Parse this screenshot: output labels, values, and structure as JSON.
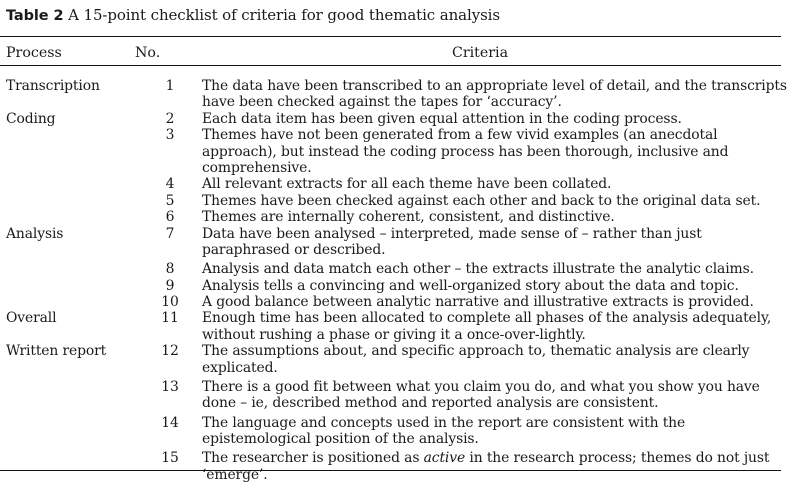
{
  "caption": {
    "label": "Table 2",
    "title": "A 15-point checklist of criteria for good thematic analysis"
  },
  "columns": {
    "process": "Process",
    "number": "No.",
    "criteria": "Criteria"
  },
  "rows": [
    {
      "process": "Transcription",
      "no": "1",
      "criteria": "The data have been transcribed to an appropriate level of detail, and the transcripts have been checked against the tapes for ‘accuracy’."
    },
    {
      "process": "Coding",
      "no": "2",
      "criteria": "Each data item has been given equal attention in the coding process."
    },
    {
      "process": "",
      "no": "3",
      "criteria": "Themes have not been generated from a few vivid examples (an anecdotal approach), but instead the coding process has been thorough, inclusive and comprehensive."
    },
    {
      "process": "",
      "no": "4",
      "criteria": "All relevant extracts for all each theme have been collated."
    },
    {
      "process": "",
      "no": "5",
      "criteria": "Themes have been checked against each other and back to the original data set."
    },
    {
      "process": "",
      "no": "6",
      "criteria": "Themes are internally coherent, consistent, and distinctive."
    },
    {
      "process": "Analysis",
      "no": "7",
      "criteria": "Data have been analysed – interpreted, made sense of – rather than just paraphrased or described."
    },
    {
      "process": "",
      "no": "8",
      "criteria": "Analysis and data match each other – the extracts illustrate the analytic claims."
    },
    {
      "process": "",
      "no": "9",
      "criteria": "Analysis tells a convincing and well-organized story about the data and topic."
    },
    {
      "process": "",
      "no": "10",
      "criteria": "A good balance between analytic narrative and illustrative extracts is provided."
    },
    {
      "process": "Overall",
      "no": "11",
      "criteria": "Enough time has been allocated to complete all phases of the analysis adequately, without rushing a phase or giving it a once-over-lightly."
    },
    {
      "process": "Written report",
      "no": "12",
      "criteria": "The assumptions about, and specific approach to, thematic analysis are clearly explicated."
    },
    {
      "process": "",
      "no": "13",
      "criteria": "There is a good fit between what you claim you do, and what you show you have done – ie, described method and reported analysis are consistent."
    },
    {
      "process": "",
      "no": "14",
      "criteria": "The language and concepts used in the report are consistent with the epistemological position of the analysis."
    },
    {
      "process": "",
      "no": "15",
      "criteria_pre": "The researcher is positioned as ",
      "criteria_em": "active",
      "criteria_post": " in the research process; themes do not just ‘emerge’."
    }
  ]
}
